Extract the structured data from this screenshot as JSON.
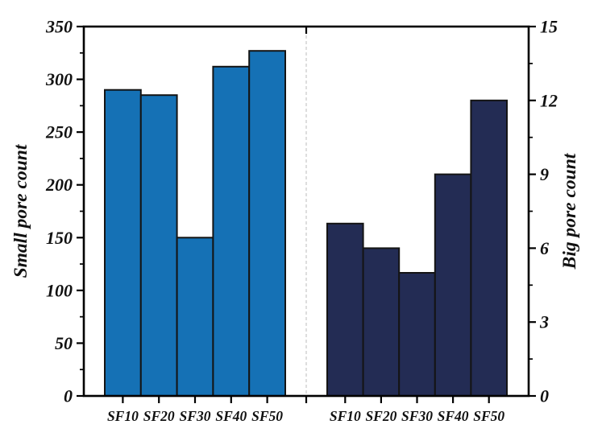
{
  "figure": {
    "background_color": "#ffffff",
    "axis_color": "#000000",
    "text_color": "#111111"
  },
  "chart_data": {
    "type": "bar",
    "categories": [
      "SF10",
      "SF20",
      "SF30",
      "SF40",
      "SF50"
    ],
    "title": "",
    "grid": false,
    "legend": null,
    "divider": {
      "style": "dashed",
      "color": "#c9c9c9"
    },
    "bar_edge_color": "#141414",
    "panels": [
      {
        "id": "small-pore",
        "ylabel": "Small pore count",
        "axis_side": "left",
        "values": [
          290,
          285,
          150,
          312,
          327
        ],
        "ylim": [
          0,
          350
        ],
        "ytick_step": 50,
        "yticks": [
          0,
          50,
          100,
          150,
          200,
          250,
          300,
          350
        ],
        "minor_tick_step": 25,
        "bar_color": "#1571b5"
      },
      {
        "id": "big-pore",
        "ylabel": "Big pore count",
        "axis_side": "right",
        "values": [
          7,
          6,
          5,
          9,
          12
        ],
        "ylim": [
          0,
          15
        ],
        "ytick_step": 3,
        "yticks": [
          0,
          3,
          6,
          9,
          12,
          15
        ],
        "minor_tick_step": 1.5,
        "bar_color": "#232c54"
      }
    ]
  }
}
